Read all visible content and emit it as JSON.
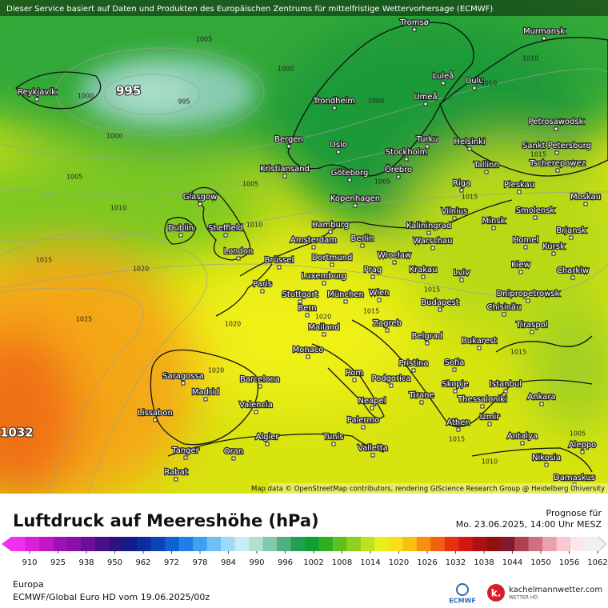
{
  "header": {
    "disclaimer": "Dieser Service basiert auf Daten und Produkten des Europäischen Zentrums für mittelfristige Wettervorhersage (ECMWF)"
  },
  "map": {
    "cities": [
      "Tromsø",
      "Murmansk",
      "Reykjavík",
      "Luleå",
      "Oulu",
      "Umeå",
      "Trondheim",
      "Petrosawodsk",
      "Bergen",
      "Turku",
      "Helsinki",
      "Oslo",
      "Stockholm",
      "Sankt Petersburg",
      "Tscherepowez",
      "Kristiansand",
      "Göteborg",
      "Örebro",
      "Tallinn",
      "Glasgow",
      "Kopenhagen",
      "Riga",
      "Pleskau",
      "Moskau",
      "Vilnius",
      "Minsk",
      "Smolensk",
      "Dublin",
      "Sheffield",
      "Hamburg",
      "Kaliningrad",
      "Brjansk",
      "Amsterdam",
      "Berlin",
      "Warschau",
      "Homel",
      "Kursk",
      "London",
      "Brüssel",
      "Dortmund",
      "Wrocław",
      "Kiew",
      "Charkiw",
      "Prag",
      "Krakau",
      "Luxemburg",
      "Lviv",
      "Paris",
      "Stuttgart",
      "München",
      "Wien",
      "Dnipropetrowsk",
      "Budapest",
      "Chisinău",
      "Bern",
      "Mailand",
      "Zagreb",
      "Tiraspol",
      "Monaco",
      "Belgrad",
      "Bukarest",
      "Pristina",
      "Sofia",
      "Saragossa",
      "Barcelona",
      "Rom",
      "Podgorica",
      "Istanbul",
      "Skopje",
      "Madrid",
      "Tirane",
      "Thessaloniki",
      "Ankara",
      "Neapel",
      "Valencia",
      "Lissabon",
      "Izmir",
      "Athen",
      "Palermo",
      "Antalya",
      "Aleppo",
      "Algier",
      "Tunis",
      "Valletta",
      "Nikosia",
      "Tanger",
      "Oran",
      "Rabat",
      "Damaskus"
    ],
    "pressure_labels": [
      "1005",
      "1000",
      "1010",
      "1000",
      "995",
      "1000",
      "1010",
      "1000",
      "1015",
      "1005",
      "1005",
      "1005",
      "1015",
      "1010",
      "1010",
      "1015",
      "1020",
      "1015",
      "1015",
      "1025",
      "1020",
      "1020",
      "1015",
      "1020",
      "1015",
      "1005",
      "1010"
    ],
    "low_label": "995",
    "high_label": "1032",
    "attribution": "Map data © OpenStreetMap contributors, rendering GIScience Research Group @ Heidelberg University"
  },
  "footer": {
    "title": "Luftdruck auf Meereshöhe (hPa)",
    "forecast_label": "Prognose für",
    "forecast_time": "Mo. 23.06.2025, 14:00 Uhr MESZ",
    "region": "Europa",
    "model": "ECMWF/Global Euro HD vom  19.06.2025/00z",
    "logo_ecmwf": "ECMWF",
    "logo_brand": "kachelmannwetter.com",
    "logo_sub": "WETTER HD"
  },
  "colorbar": {
    "ticks": [
      910,
      925,
      938,
      950,
      962,
      972,
      978,
      984,
      990,
      996,
      1002,
      1008,
      1014,
      1020,
      1026,
      1032,
      1038,
      1044,
      1050,
      1056,
      1062
    ],
    "colors": [
      "#f030f0",
      "#d820d8",
      "#c018c8",
      "#a010b8",
      "#8810a8",
      "#6a1098",
      "#4a1088",
      "#2a1480",
      "#101c8c",
      "#0c2ca0",
      "#0a44b8",
      "#1060d0",
      "#2080e8",
      "#40a0f0",
      "#70c0f8",
      "#a0d8f8",
      "#c8ecf4",
      "#b0e0d0",
      "#80c8a8",
      "#50b080",
      "#20a050",
      "#10a030",
      "#30b020",
      "#60c020",
      "#90d020",
      "#c0e020",
      "#e8f020",
      "#f8e018",
      "#f8c010",
      "#f89010",
      "#f06010",
      "#e83010",
      "#d01810",
      "#b01010",
      "#901010",
      "#801830",
      "#b04050",
      "#d07080",
      "#e8a0b0",
      "#f8c8d0",
      "#f8e8ec",
      "#f0f0f0"
    ]
  }
}
